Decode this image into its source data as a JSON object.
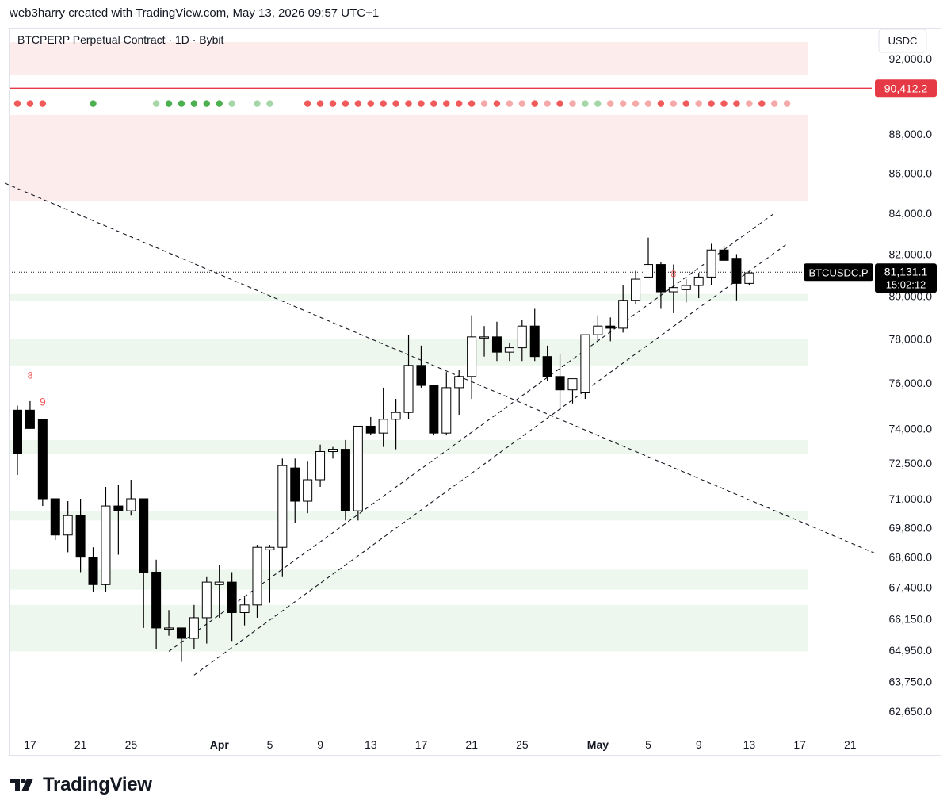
{
  "header": {
    "attribution": "web3harry created with TradingView.com, May 13, 2026 09:57 UTC+1"
  },
  "footer": {
    "brand": "TradingView"
  },
  "colors": {
    "up_candle_fill": "#ffffff",
    "down_candle_fill": "#000000",
    "candle_outline": "#000000",
    "red_dot": "#f05a5a",
    "red_dot_light": "#f5a9a9",
    "green_dot": "#4caf50",
    "green_dot_light": "#a5d6a7",
    "red_zone": "#fdecec",
    "green_zone": "#edf7ed",
    "resistance_line": "#e53945",
    "price_label": "#000000"
  },
  "chart_data": {
    "type": "candlestick",
    "title": "BTCPERP Perpetual Contract · 1D · Bybit",
    "currency": "USDC",
    "y_scale": "log",
    "ylim": [
      62000,
      93000
    ],
    "y_ticks": [
      "92,000.0",
      "88,000.0",
      "86,000.0",
      "84,000.0",
      "82,000.0",
      "80,000.0",
      "78,000.0",
      "76,000.0",
      "74,000.0",
      "72,500.0",
      "71,000.0",
      "69,800.0",
      "68,600.0",
      "67,400.0",
      "66,150.0",
      "64,950.0",
      "63,750.0",
      "62,650.0"
    ],
    "x_ticks": [
      {
        "label": "17",
        "day": 0,
        "bold": false
      },
      {
        "label": "21",
        "day": 4,
        "bold": false
      },
      {
        "label": "25",
        "day": 8,
        "bold": false
      },
      {
        "label": "Apr",
        "day": 15,
        "bold": true
      },
      {
        "label": "5",
        "day": 19,
        "bold": false
      },
      {
        "label": "9",
        "day": 23,
        "bold": false
      },
      {
        "label": "13",
        "day": 27,
        "bold": false
      },
      {
        "label": "17",
        "day": 31,
        "bold": false
      },
      {
        "label": "21",
        "day": 35,
        "bold": false
      },
      {
        "label": "25",
        "day": 39,
        "bold": false
      },
      {
        "label": "May",
        "day": 45,
        "bold": true
      },
      {
        "label": "5",
        "day": 49,
        "bold": false
      },
      {
        "label": "9",
        "day": 53,
        "bold": false
      },
      {
        "label": "13",
        "day": 57,
        "bold": false
      },
      {
        "label": "17",
        "day": 61,
        "bold": false
      },
      {
        "label": "21",
        "day": 65,
        "bold": false
      }
    ],
    "candles": [
      [
        74800,
        75000,
        72000,
        72900
      ],
      [
        74800,
        75200,
        74000,
        74000
      ],
      [
        74400,
        74400,
        70700,
        71000
      ],
      [
        71000,
        71000,
        69300,
        69500
      ],
      [
        69500,
        70900,
        68800,
        70300
      ],
      [
        70300,
        71000,
        68000,
        68600
      ],
      [
        68600,
        69000,
        67200,
        67500
      ],
      [
        67500,
        71500,
        67200,
        70700
      ],
      [
        70700,
        71600,
        68700,
        70500
      ],
      [
        70500,
        71800,
        70300,
        71000
      ],
      [
        71000,
        71000,
        65800,
        68000
      ],
      [
        68000,
        68500,
        65000,
        65800
      ],
      [
        65800,
        66500,
        65500,
        65800
      ],
      [
        65800,
        65800,
        64500,
        65400
      ],
      [
        65400,
        66700,
        65000,
        66200
      ],
      [
        66200,
        67800,
        65200,
        67600
      ],
      [
        67500,
        68300,
        66200,
        67600
      ],
      [
        67600,
        68000,
        65300,
        66400
      ],
      [
        66400,
        67000,
        65900,
        66700
      ],
      [
        66700,
        69100,
        66200,
        69000
      ],
      [
        68900,
        69100,
        66800,
        69000
      ],
      [
        69000,
        72700,
        67800,
        72400
      ],
      [
        72300,
        72700,
        70000,
        70900
      ],
      [
        70900,
        72600,
        70400,
        71800
      ],
      [
        71800,
        73300,
        71500,
        73000
      ],
      [
        73000,
        73200,
        72700,
        73100
      ],
      [
        73100,
        73500,
        70100,
        70500
      ],
      [
        70500,
        74100,
        70100,
        74100
      ],
      [
        74100,
        74500,
        73700,
        73800
      ],
      [
        73800,
        75800,
        73200,
        74400
      ],
      [
        74400,
        75300,
        73100,
        74700
      ],
      [
        74700,
        78200,
        74400,
        76800
      ],
      [
        76800,
        77700,
        75800,
        75900
      ],
      [
        75900,
        75900,
        73700,
        73800
      ],
      [
        73800,
        76500,
        73700,
        75800
      ],
      [
        75800,
        76600,
        74600,
        76300
      ],
      [
        76300,
        79100,
        75300,
        78100
      ],
      [
        78100,
        78600,
        77200,
        78100
      ],
      [
        78100,
        78800,
        77000,
        77400
      ],
      [
        77400,
        77800,
        77000,
        77600
      ],
      [
        77600,
        78900,
        77000,
        78600
      ],
      [
        78600,
        79400,
        77000,
        77200
      ],
      [
        77200,
        77700,
        76100,
        76300
      ],
      [
        76300,
        77300,
        74800,
        75700
      ],
      [
        75700,
        76200,
        75100,
        76200
      ],
      [
        75600,
        78100,
        75300,
        78200
      ],
      [
        78200,
        79100,
        77900,
        78600
      ],
      [
        78600,
        79000,
        77900,
        78500
      ],
      [
        78500,
        80500,
        78300,
        79800
      ],
      [
        79800,
        81200,
        79600,
        80800
      ],
      [
        80900,
        82800,
        80900,
        81500
      ],
      [
        81500,
        81600,
        79400,
        80200
      ],
      [
        80200,
        81500,
        79200,
        80400
      ],
      [
        80300,
        80800,
        79700,
        80500
      ],
      [
        80500,
        81100,
        79900,
        80900
      ],
      [
        80900,
        82500,
        80500,
        82200
      ],
      [
        82200,
        82400,
        81700,
        81700
      ],
      [
        81800,
        82000,
        79800,
        80600
      ],
      [
        80600,
        81100,
        80500,
        81100
      ]
    ],
    "current_price": {
      "symbol": "BTCUSDC.P",
      "price": "81,131.1",
      "countdown": "15:02:12",
      "value": 81131.1
    },
    "resistance_line": {
      "label": "90,412.2",
      "value": 90412.2
    },
    "red_zones": [
      [
        91100,
        92900
      ],
      [
        84600,
        89000
      ]
    ],
    "green_zones": [
      [
        79750,
        80100
      ],
      [
        76800,
        78000
      ],
      [
        72900,
        73500
      ],
      [
        70100,
        70500
      ],
      [
        67300,
        68100
      ],
      [
        64900,
        66700
      ]
    ],
    "trendlines": [
      {
        "from": {
          "day": -1,
          "price": 85500
        },
        "to": {
          "day": 68,
          "price": 68750
        }
      },
      {
        "from": {
          "day": 12,
          "price": 64900
        },
        "to": {
          "day": 60,
          "price": 84000
        }
      },
      {
        "from": {
          "day": 14,
          "price": 64000
        },
        "to": {
          "day": 61,
          "price": 82500
        }
      }
    ],
    "annotations": [
      {
        "text": "8",
        "day": 1,
        "price": 76200
      },
      {
        "text": "9",
        "day": 2,
        "price": 75000
      },
      {
        "text": "8",
        "day": 52,
        "price": 80900
      }
    ],
    "dots": {
      "price_level": 89600,
      "points": [
        [
          0,
          "red"
        ],
        [
          1,
          "red"
        ],
        [
          2,
          "red"
        ],
        [
          6,
          "green"
        ],
        [
          11,
          "green_light"
        ],
        [
          12,
          "green"
        ],
        [
          13,
          "green"
        ],
        [
          14,
          "green"
        ],
        [
          15,
          "green"
        ],
        [
          16,
          "green"
        ],
        [
          17,
          "green_light"
        ],
        [
          19,
          "green_light"
        ],
        [
          20,
          "green_light"
        ],
        [
          23,
          "red"
        ],
        [
          24,
          "red"
        ],
        [
          25,
          "red"
        ],
        [
          26,
          "red"
        ],
        [
          27,
          "red"
        ],
        [
          28,
          "red"
        ],
        [
          29,
          "red"
        ],
        [
          30,
          "red"
        ],
        [
          31,
          "red"
        ],
        [
          32,
          "red"
        ],
        [
          33,
          "red"
        ],
        [
          34,
          "red"
        ],
        [
          35,
          "red"
        ],
        [
          36,
          "red"
        ],
        [
          37,
          "red_light"
        ],
        [
          38,
          "red"
        ],
        [
          39,
          "red_light"
        ],
        [
          40,
          "red_light"
        ],
        [
          41,
          "red"
        ],
        [
          42,
          "red_light"
        ],
        [
          43,
          "red"
        ],
        [
          44,
          "red_light"
        ],
        [
          45,
          "green_light"
        ],
        [
          46,
          "green_light"
        ],
        [
          47,
          "red_light"
        ],
        [
          48,
          "red_light"
        ],
        [
          49,
          "red_light"
        ],
        [
          50,
          "red_light"
        ],
        [
          51,
          "red"
        ],
        [
          52,
          "red_light"
        ],
        [
          53,
          "red"
        ],
        [
          54,
          "red_light"
        ],
        [
          55,
          "red"
        ],
        [
          56,
          "red"
        ],
        [
          57,
          "red"
        ],
        [
          58,
          "red_light"
        ],
        [
          59,
          "red"
        ],
        [
          60,
          "red_light"
        ],
        [
          61,
          "red_light"
        ]
      ]
    }
  }
}
